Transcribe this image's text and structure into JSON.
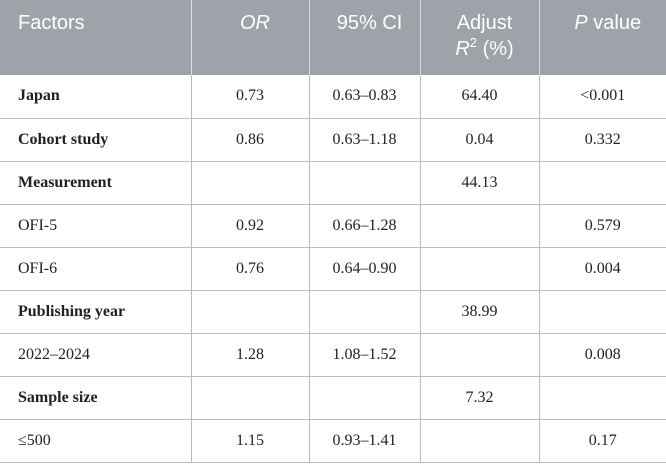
{
  "table": {
    "headers": {
      "factors": "Factors",
      "or": "OR",
      "ci": "95% CI",
      "adjust": "Adjust",
      "r": "R",
      "r_sup": "2",
      "pct": "(%)",
      "p": "P",
      "value": "value"
    },
    "rows": [
      {
        "factor": "Japan",
        "or": "0.73",
        "ci": "0.63–0.83",
        "r2": "64.40",
        "p": "<0.001"
      },
      {
        "factor": "Cohort study",
        "or": "0.86",
        "ci": "0.63–1.18",
        "r2": "0.04",
        "p": "0.332"
      },
      {
        "factor": "Measurement",
        "or": "",
        "ci": "",
        "r2": "44.13",
        "p": ""
      },
      {
        "factor": "OFI-5",
        "or": "0.92",
        "ci": "0.66–1.28",
        "r2": "",
        "p": "0.579"
      },
      {
        "factor": "OFI-6",
        "or": "0.76",
        "ci": "0.64–0.90",
        "r2": "",
        "p": "0.004"
      },
      {
        "factor": "Publishing year",
        "or": "",
        "ci": "",
        "r2": "38.99",
        "p": ""
      },
      {
        "factor": "2022–2024",
        "or": "1.28",
        "ci": "1.08–1.52",
        "r2": "",
        "p": "0.008"
      },
      {
        "factor": "Sample size",
        "or": "",
        "ci": "",
        "r2": "7.32",
        "p": ""
      },
      {
        "factor": "≤500",
        "or": "1.15",
        "ci": "0.93–1.41",
        "r2": "",
        "p": "0.17"
      }
    ]
  },
  "colors": {
    "header_bg": "#9da3a8",
    "header_text": "#ffffff",
    "rule": "#b9bdc0"
  }
}
